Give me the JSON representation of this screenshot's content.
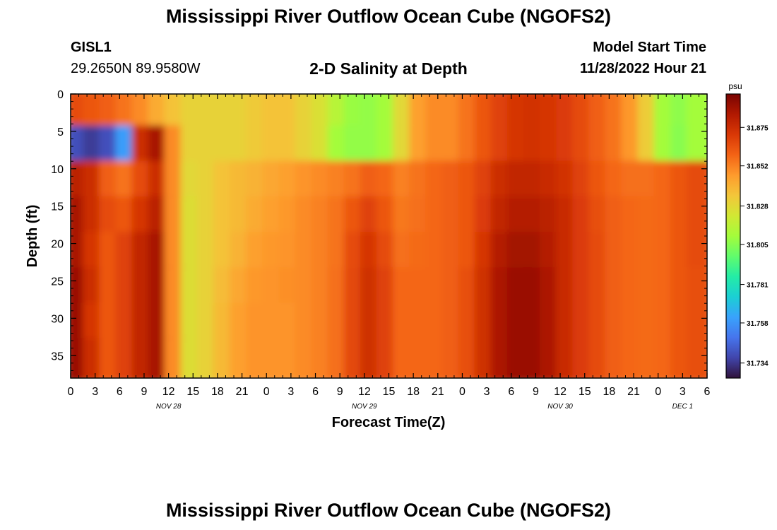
{
  "header": {
    "title": "Mississippi River Outflow Ocean Cube (NGOFS2)",
    "station_id": "GISL1",
    "station_coords": "29.2650N  89.9580W",
    "plot_subtitle": "2-D Salinity at Depth",
    "model_start_label": "Model Start Time",
    "model_start_value": "11/28/2022 Hour 21"
  },
  "footer": {
    "title": "Mississippi River Outflow Ocean Cube (NGOFS2)"
  },
  "chart_data": {
    "type": "heatmap",
    "title": "2-D Salinity at Depth",
    "xlabel": "Forecast Time(Z)",
    "ylabel": "Depth (ft)",
    "colorbar_label": "psu",
    "x_tick_labels": [
      "0",
      "3",
      "6",
      "9",
      "12",
      "15",
      "18",
      "21",
      "0",
      "3",
      "6",
      "9",
      "12",
      "15",
      "18",
      "21",
      "0",
      "3",
      "6",
      "9",
      "12",
      "15",
      "18",
      "21",
      "0",
      "3",
      "6"
    ],
    "x_tick_hours": [
      0,
      3,
      6,
      9,
      12,
      15,
      18,
      21,
      24,
      27,
      30,
      33,
      36,
      39,
      42,
      45,
      48,
      51,
      54,
      57,
      60,
      63,
      66,
      69,
      72,
      75,
      78
    ],
    "date_labels": [
      {
        "label": "NOV 28",
        "hour": 12
      },
      {
        "label": "NOV 29",
        "hour": 36
      },
      {
        "label": "NOV 30",
        "hour": 60
      },
      {
        "label": "DEC 1",
        "hour": 75
      }
    ],
    "xlim_hours": [
      0,
      78
    ],
    "y_ticks": [
      0,
      5,
      10,
      15,
      20,
      25,
      30,
      35
    ],
    "ylim": [
      0,
      38
    ],
    "y_inverted": true,
    "colorbar_ticks": [
      31.875,
      31.852,
      31.828,
      31.805,
      31.781,
      31.758,
      31.734
    ],
    "colorbar_range": [
      31.725,
      31.895
    ],
    "colormap": [
      "#30123b",
      "#4145ab",
      "#4675ed",
      "#39a2fc",
      "#1bcfd4",
      "#24eca6",
      "#61fc6c",
      "#a4fc3b",
      "#d1e834",
      "#f3c63a",
      "#fe9b2d",
      "#f36315",
      "#d93806",
      "#b11901",
      "#7a0402"
    ],
    "values": [
      [
        31.865,
        31.862,
        31.86,
        31.855,
        31.85,
        31.842,
        31.835,
        31.83,
        31.83,
        31.83,
        31.83,
        31.833,
        31.835,
        31.835,
        31.83,
        31.825,
        31.815,
        31.808,
        31.807,
        31.81,
        31.828,
        31.845,
        31.85,
        31.85,
        31.855,
        31.862,
        31.868,
        31.872,
        31.873,
        31.872,
        31.87,
        31.865,
        31.86,
        31.855,
        31.847,
        31.832,
        31.81,
        31.806,
        31.81
      ],
      [
        31.74,
        31.735,
        31.74,
        31.76,
        31.875,
        31.885,
        31.85,
        31.83,
        31.83,
        31.83,
        31.83,
        31.833,
        31.835,
        31.835,
        31.83,
        31.825,
        31.81,
        31.807,
        31.807,
        31.81,
        31.828,
        31.845,
        31.85,
        31.85,
        31.855,
        31.862,
        31.868,
        31.872,
        31.873,
        31.872,
        31.87,
        31.865,
        31.86,
        31.855,
        31.847,
        31.832,
        31.81,
        31.805,
        31.81
      ],
      [
        31.88,
        31.875,
        31.86,
        31.855,
        31.865,
        31.875,
        31.85,
        31.828,
        31.83,
        31.835,
        31.838,
        31.84,
        31.843,
        31.845,
        31.848,
        31.85,
        31.852,
        31.855,
        31.86,
        31.858,
        31.852,
        31.855,
        31.858,
        31.86,
        31.862,
        31.868,
        31.875,
        31.878,
        31.878,
        31.876,
        31.873,
        31.868,
        31.862,
        31.858,
        31.856,
        31.856,
        31.858,
        31.862,
        31.865
      ],
      [
        31.885,
        31.875,
        31.865,
        31.862,
        31.872,
        31.88,
        31.85,
        31.826,
        31.83,
        31.835,
        31.838,
        31.842,
        31.845,
        31.847,
        31.85,
        31.852,
        31.855,
        31.862,
        31.868,
        31.862,
        31.854,
        31.856,
        31.858,
        31.86,
        31.862,
        31.87,
        31.878,
        31.882,
        31.882,
        31.88,
        31.876,
        31.87,
        31.864,
        31.86,
        31.858,
        31.857,
        31.858,
        31.862,
        31.865
      ],
      [
        31.885,
        31.872,
        31.862,
        31.868,
        31.878,
        31.885,
        31.85,
        31.826,
        31.83,
        31.835,
        31.84,
        31.845,
        31.847,
        31.848,
        31.85,
        31.852,
        31.855,
        31.865,
        31.872,
        31.865,
        31.856,
        31.857,
        31.858,
        31.86,
        31.862,
        31.872,
        31.882,
        31.886,
        31.886,
        31.882,
        31.876,
        31.87,
        31.865,
        31.86,
        31.858,
        31.857,
        31.858,
        31.862,
        31.865
      ],
      [
        31.888,
        31.875,
        31.862,
        31.868,
        31.878,
        31.885,
        31.85,
        31.826,
        31.83,
        31.837,
        31.843,
        31.847,
        31.848,
        31.849,
        31.85,
        31.852,
        31.856,
        31.866,
        31.874,
        31.868,
        31.858,
        31.858,
        31.858,
        31.86,
        31.864,
        31.874,
        31.884,
        31.888,
        31.888,
        31.884,
        31.876,
        31.87,
        31.865,
        31.86,
        31.858,
        31.857,
        31.858,
        31.862,
        31.864
      ],
      [
        31.888,
        31.872,
        31.862,
        31.868,
        31.878,
        31.885,
        31.85,
        31.826,
        31.83,
        31.838,
        31.845,
        31.848,
        31.848,
        31.848,
        31.85,
        31.852,
        31.856,
        31.866,
        31.874,
        31.868,
        31.858,
        31.858,
        31.858,
        31.86,
        31.864,
        31.874,
        31.884,
        31.888,
        31.888,
        31.884,
        31.876,
        31.87,
        31.865,
        31.86,
        31.858,
        31.857,
        31.858,
        31.862,
        31.864
      ],
      [
        31.888,
        31.875,
        31.862,
        31.868,
        31.878,
        31.885,
        31.85,
        31.826,
        31.83,
        31.838,
        31.845,
        31.848,
        31.848,
        31.848,
        31.85,
        31.852,
        31.856,
        31.866,
        31.874,
        31.868,
        31.858,
        31.858,
        31.858,
        31.86,
        31.864,
        31.874,
        31.884,
        31.888,
        31.888,
        31.884,
        31.876,
        31.87,
        31.865,
        31.86,
        31.858,
        31.857,
        31.858,
        31.862,
        31.864
      ]
    ]
  }
}
